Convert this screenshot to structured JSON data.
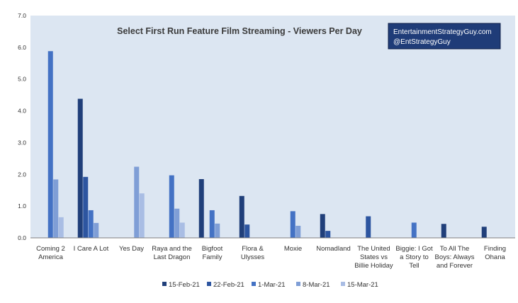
{
  "chart_data": {
    "type": "bar",
    "title": "Select First Run Feature Film Streaming - Viewers Per Day",
    "xlabel": "",
    "ylabel": "",
    "ylim": [
      0,
      7
    ],
    "yticks": [
      "0.0",
      "1.0",
      "2.0",
      "3.0",
      "4.0",
      "5.0",
      "6.0",
      "7.0"
    ],
    "grid": false,
    "legend_position": "bottom",
    "categories": [
      [
        "Coming 2",
        "America"
      ],
      [
        "I Care A Lot"
      ],
      [
        "Yes Day"
      ],
      [
        "Raya and the",
        "Last Dragon"
      ],
      [
        "Bigfoot",
        "Family"
      ],
      [
        "Flora &",
        "Ulysses"
      ],
      [
        "Moxie"
      ],
      [
        "Nomadland"
      ],
      [
        "The United",
        "States vs",
        "Billie Holiday"
      ],
      [
        "Biggie: I Got",
        "a Story to",
        "Tell"
      ],
      [
        "To All The",
        "Boys: Always",
        "and Forever"
      ],
      [
        "Finding",
        "Ohana"
      ]
    ],
    "series": [
      {
        "name": "15-Feb-21",
        "color": "#203f7a",
        "values": [
          null,
          4.38,
          null,
          null,
          1.85,
          1.32,
          null,
          0.75,
          null,
          null,
          0.44,
          0.35
        ]
      },
      {
        "name": "22-Feb-21",
        "color": "#2d55a0",
        "values": [
          null,
          1.92,
          null,
          null,
          null,
          0.42,
          null,
          0.22,
          0.68,
          null,
          null,
          null
        ]
      },
      {
        "name": "1-Mar-21",
        "color": "#4472c4",
        "values": [
          5.88,
          0.87,
          null,
          1.97,
          0.87,
          null,
          0.84,
          null,
          null,
          0.48,
          null,
          null
        ]
      },
      {
        "name": "8-Mar-21",
        "color": "#7f9ed6",
        "values": [
          1.84,
          0.47,
          2.24,
          0.92,
          0.45,
          null,
          0.38,
          null,
          null,
          null,
          null,
          null
        ]
      },
      {
        "name": "15-Mar-21",
        "color": "#a9bde4",
        "values": [
          0.65,
          null,
          1.4,
          0.48,
          null,
          null,
          null,
          null,
          null,
          null,
          null,
          null
        ]
      }
    ],
    "colors": {
      "plot_background": "#dce6f2",
      "watermark_background": "#1f3c78",
      "axis": "#7f7f7f"
    }
  },
  "watermark": {
    "line1": "EntertainmentStrategyGuy.com",
    "line2": "@EntStrategyGuy"
  }
}
